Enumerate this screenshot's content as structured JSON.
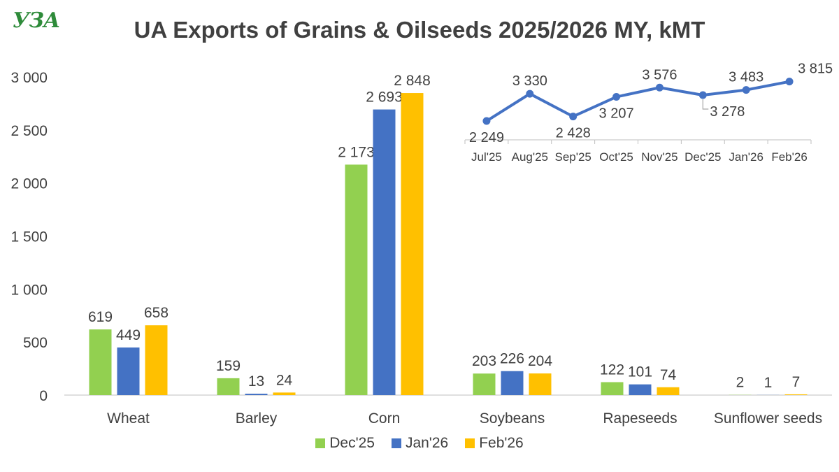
{
  "logo": {
    "text": "УЗА"
  },
  "title": "UA Exports of Grains & Oilseeds 2025/2026 MY, kMT",
  "colors": {
    "dec": "#92d050",
    "jan": "#4472c4",
    "feb": "#ffc000",
    "line": "#4472c4",
    "text": "#404040",
    "axis": "#bfbfbf"
  },
  "chart_data": [
    {
      "type": "bar",
      "title": "UA Exports of Grains & Oilseeds 2025/2026 MY, kMT",
      "categories": [
        "Wheat",
        "Barley",
        "Corn",
        "Soybeans",
        "Rapeseeds",
        "Sunflower seeds"
      ],
      "series": [
        {
          "name": "Dec'25",
          "color": "#92d050",
          "values": [
            619,
            159,
            2173,
            203,
            122,
            2
          ],
          "labels": [
            "619",
            "159",
            "2 173",
            "203",
            "122",
            "2"
          ]
        },
        {
          "name": "Jan'26",
          "color": "#4472c4",
          "values": [
            449,
            13,
            2693,
            226,
            101,
            1
          ],
          "labels": [
            "449",
            "13",
            "2 693",
            "226",
            "101",
            "1"
          ]
        },
        {
          "name": "Feb'26",
          "color": "#ffc000",
          "values": [
            658,
            24,
            2848,
            204,
            74,
            7
          ],
          "labels": [
            "658",
            "24",
            "2 848",
            "204",
            "74",
            "7"
          ]
        }
      ],
      "ylim": [
        0,
        3000
      ],
      "yticks": [
        0,
        500,
        1000,
        1500,
        2000,
        2500,
        3000
      ],
      "ytick_labels": [
        "0",
        "500",
        "1 000",
        "1 500",
        "2 000",
        "2 500",
        "3 000"
      ],
      "grid": false,
      "legend": "bottom"
    },
    {
      "type": "line",
      "x": [
        "Jul'25",
        "Aug'25",
        "Sep'25",
        "Oct'25",
        "Nov'25",
        "Dec'25",
        "Jan'26",
        "Feb'26"
      ],
      "values": [
        2249,
        3330,
        2428,
        3207,
        3576,
        3278,
        3483,
        3815
      ],
      "labels": [
        "2 249",
        "3 330",
        "2 428",
        "3 207",
        "3 576",
        "3 278",
        "3 483",
        "3 815"
      ],
      "grid": false
    }
  ]
}
